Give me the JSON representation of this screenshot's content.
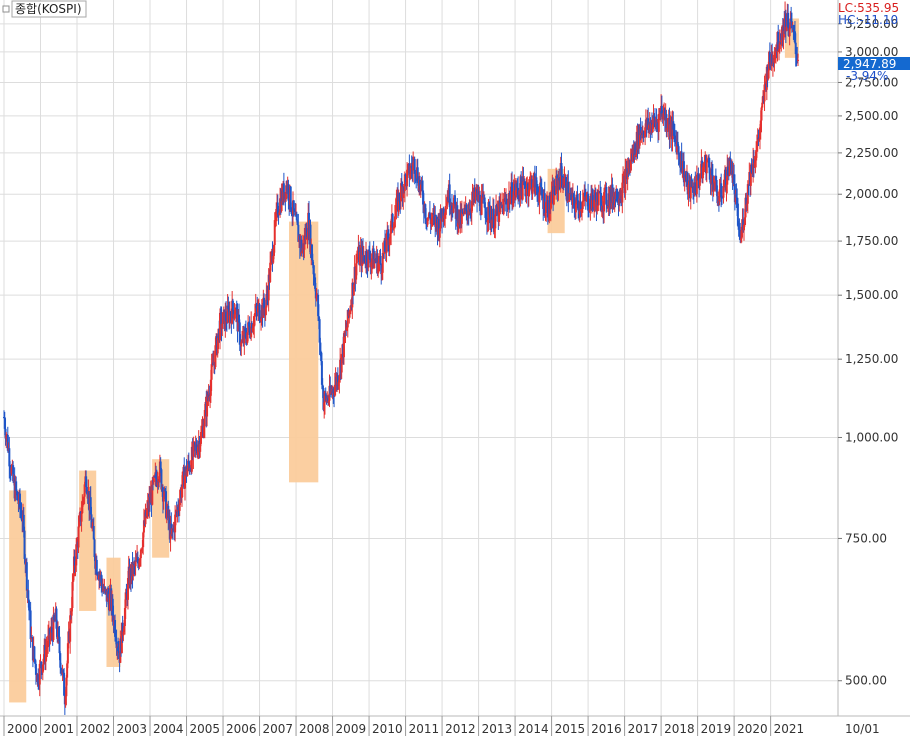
{
  "panel": {
    "title": "종합(KOSPI)",
    "lc_label": "LC:535.95",
    "hc_label": "HC:-11.10",
    "current_price": "2,947.89",
    "change_pct": "-3.94%",
    "corner_date": "10/01"
  },
  "colors": {
    "up": "#e5302e",
    "down": "#1f55c8",
    "highlight": "#fbcb99",
    "grid": "#dddddd",
    "price_box": "#1469d0"
  },
  "chart_data": {
    "type": "candlestick",
    "title": "종합(KOSPI)",
    "x_label": "",
    "y_label": "",
    "y_scale": "log",
    "y_ticks": [
      "500.00",
      "750.00",
      "1,000.00",
      "1,250.00",
      "1,500.00",
      "1,750.00",
      "2,000.00",
      "2,250.00",
      "2,500.00",
      "2,750.00",
      "3,000.00",
      "3,250.00"
    ],
    "y_tick_values": [
      500,
      750,
      1000,
      1250,
      1500,
      1750,
      2000,
      2250,
      2500,
      2750,
      3000,
      3250
    ],
    "ylim": [
      460,
      3400
    ],
    "x_tick_labels": [
      "2000",
      "2001",
      "2002",
      "2003",
      "2004",
      "2005",
      "2006",
      "2007",
      "2008",
      "2009",
      "2010",
      "2011",
      "2012",
      "2013",
      "2014",
      "2015",
      "2016",
      "2017",
      "2018",
      "2019",
      "2020",
      "2021"
    ],
    "x_range": [
      "2000-01",
      "2021-10"
    ],
    "grid": true,
    "anchors": [
      [
        "2000-01",
        1060
      ],
      [
        "2000-04",
        880
      ],
      [
        "2000-07",
        800
      ],
      [
        "2000-10",
        560
      ],
      [
        "2000-12",
        505
      ],
      [
        "2001-03",
        550
      ],
      [
        "2001-06",
        595
      ],
      [
        "2001-09",
        480
      ],
      [
        "2001-12",
        690
      ],
      [
        "2002-04",
        900
      ],
      [
        "2002-07",
        710
      ],
      [
        "2002-10",
        640
      ],
      [
        "2002-12",
        630
      ],
      [
        "2003-03",
        540
      ],
      [
        "2003-06",
        670
      ],
      [
        "2003-09",
        700
      ],
      [
        "2003-12",
        810
      ],
      [
        "2004-04",
        920
      ],
      [
        "2004-08",
        750
      ],
      [
        "2004-12",
        890
      ],
      [
        "2005-06",
        1010
      ],
      [
        "2005-12",
        1380
      ],
      [
        "2006-05",
        1450
      ],
      [
        "2006-07",
        1300
      ],
      [
        "2006-12",
        1430
      ],
      [
        "2007-03",
        1450
      ],
      [
        "2007-07",
        1930
      ],
      [
        "2007-10",
        2060
      ],
      [
        "2007-12",
        1900
      ],
      [
        "2008-03",
        1700
      ],
      [
        "2008-05",
        1850
      ],
      [
        "2008-08",
        1470
      ],
      [
        "2008-10",
        1110
      ],
      [
        "2008-12",
        1120
      ],
      [
        "2009-03",
        1200
      ],
      [
        "2009-06",
        1390
      ],
      [
        "2009-09",
        1670
      ],
      [
        "2009-12",
        1680
      ],
      [
        "2010-05",
        1640
      ],
      [
        "2010-12",
        2050
      ],
      [
        "2011-04",
        2190
      ],
      [
        "2011-08",
        1880
      ],
      [
        "2011-12",
        1830
      ],
      [
        "2012-03",
        2010
      ],
      [
        "2012-07",
        1850
      ],
      [
        "2012-12",
        1990
      ],
      [
        "2013-06",
        1860
      ],
      [
        "2013-12",
        2010
      ],
      [
        "2014-07",
        2070
      ],
      [
        "2014-12",
        1920
      ],
      [
        "2015-04",
        2120
      ],
      [
        "2015-08",
        1940
      ],
      [
        "2015-12",
        1960
      ],
      [
        "2016-06",
        1970
      ],
      [
        "2016-12",
        2020
      ],
      [
        "2017-06",
        2390
      ],
      [
        "2017-12",
        2470
      ],
      [
        "2018-01",
        2560
      ],
      [
        "2018-06",
        2330
      ],
      [
        "2018-10",
        2020
      ],
      [
        "2018-12",
        2040
      ],
      [
        "2019-04",
        2200
      ],
      [
        "2019-08",
        1970
      ],
      [
        "2019-12",
        2190
      ],
      [
        "2020-03",
        1750
      ],
      [
        "2020-06",
        2100
      ],
      [
        "2020-09",
        2330
      ],
      [
        "2020-12",
        2870
      ],
      [
        "2021-03",
        3060
      ],
      [
        "2021-06",
        3290
      ],
      [
        "2021-08",
        3200
      ],
      [
        "2021-09",
        3070
      ],
      [
        "2021-10",
        2950
      ]
    ],
    "highlights": [
      {
        "from": "2000-04",
        "to": "2000-07",
        "low": 470,
        "high": 860
      },
      {
        "from": "2002-03",
        "to": "2002-06",
        "low": 610,
        "high": 910
      },
      {
        "from": "2002-12",
        "to": "2003-02",
        "low": 520,
        "high": 710
      },
      {
        "from": "2004-03",
        "to": "2004-06",
        "low": 710,
        "high": 940
      },
      {
        "from": "2007-12",
        "to": "2008-07",
        "low": 880,
        "high": 1850
      },
      {
        "from": "2015-01",
        "to": "2015-04",
        "low": 1790,
        "high": 2150
      },
      {
        "from": "2021-07",
        "to": "2021-09",
        "low": 2950,
        "high": 3300
      }
    ]
  }
}
